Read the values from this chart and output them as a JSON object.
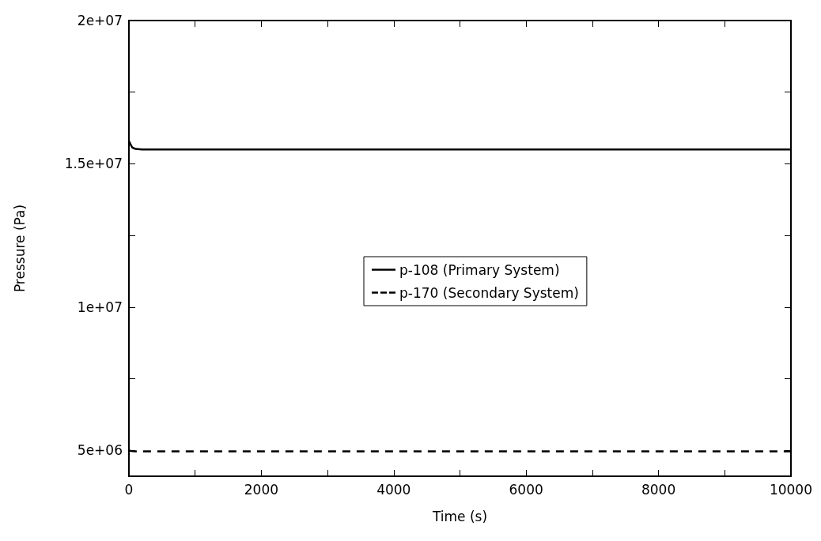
{
  "chart_data": {
    "type": "line",
    "xlabel": "Time (s)",
    "ylabel": "Pressure (Pa)",
    "xlim": [
      0,
      10000
    ],
    "xticks": [
      0,
      {
        "value": 1000,
        "label": null
      },
      2000,
      {
        "value": 3000,
        "label": null
      },
      4000,
      {
        "value": 5000,
        "label": null
      },
      6000,
      {
        "value": 7000,
        "label": null
      },
      8000,
      {
        "value": 9000,
        "label": null
      },
      10000
    ],
    "ylim": [
      4100000,
      20000000
    ],
    "yticks": [
      {
        "value": 5000000,
        "label": "5e+06"
      },
      {
        "value": 7500000,
        "label": null
      },
      {
        "value": 10000000,
        "label": "1e+07"
      },
      {
        "value": 12500000,
        "label": null
      },
      {
        "value": 15000000,
        "label": "1.5e+07"
      },
      {
        "value": 17500000,
        "label": null
      },
      {
        "value": 20000000,
        "label": "2e+07"
      }
    ],
    "grid": false,
    "legend": "right",
    "marker": "none",
    "series": [
      {
        "name": "p-108 (Primary System)",
        "color": "#000000",
        "line_style": "solid",
        "x": [
          0,
          20,
          50,
          100,
          200,
          10000
        ],
        "values": [
          15800000,
          15700000,
          15570000,
          15520000,
          15500000,
          15500000
        ]
      },
      {
        "name": "p-170 (Secondary System)",
        "color": "#000000",
        "line_style": "dashed",
        "x": [
          0,
          30,
          100,
          10000
        ],
        "values": [
          5000000,
          4980000,
          4970000,
          4970000
        ]
      }
    ]
  }
}
